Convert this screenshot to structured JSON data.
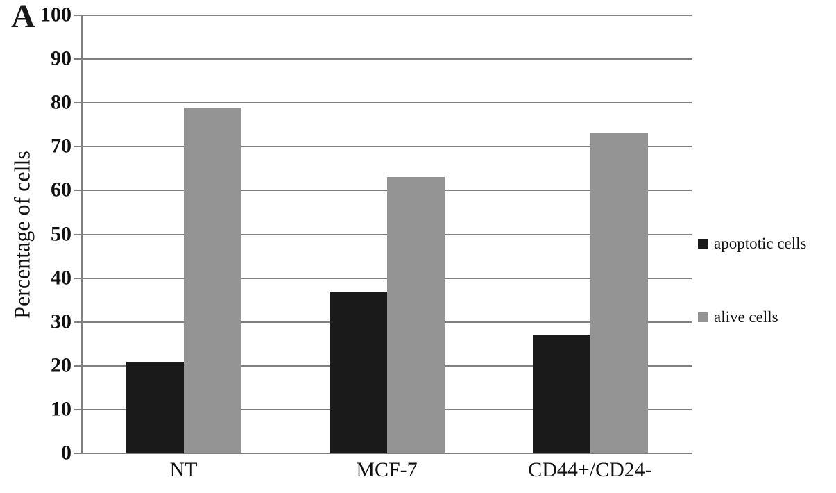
{
  "panel_label": "A",
  "colors": {
    "apoptotic_bar": "#1a1a1a",
    "alive_bar": "#949494",
    "grid": "#7f7f7f",
    "text": "#111111",
    "background": "#ffffff"
  },
  "chart_data": {
    "type": "bar",
    "title": "",
    "xlabel": "",
    "ylabel": "Percentage of cells",
    "ylim": [
      0,
      100
    ],
    "ytick_interval": 10,
    "yticks": [
      0,
      10,
      20,
      30,
      40,
      50,
      60,
      70,
      80,
      90,
      100
    ],
    "grid": true,
    "legend_position": "right",
    "categories": [
      "NT",
      "MCF-7",
      "CD44+/CD24-"
    ],
    "series": [
      {
        "name": "apoptotic cells",
        "color": "#1a1a1a",
        "values": [
          21,
          37,
          27
        ]
      },
      {
        "name": "alive cells",
        "color": "#949494",
        "values": [
          79,
          63,
          73
        ]
      }
    ]
  }
}
